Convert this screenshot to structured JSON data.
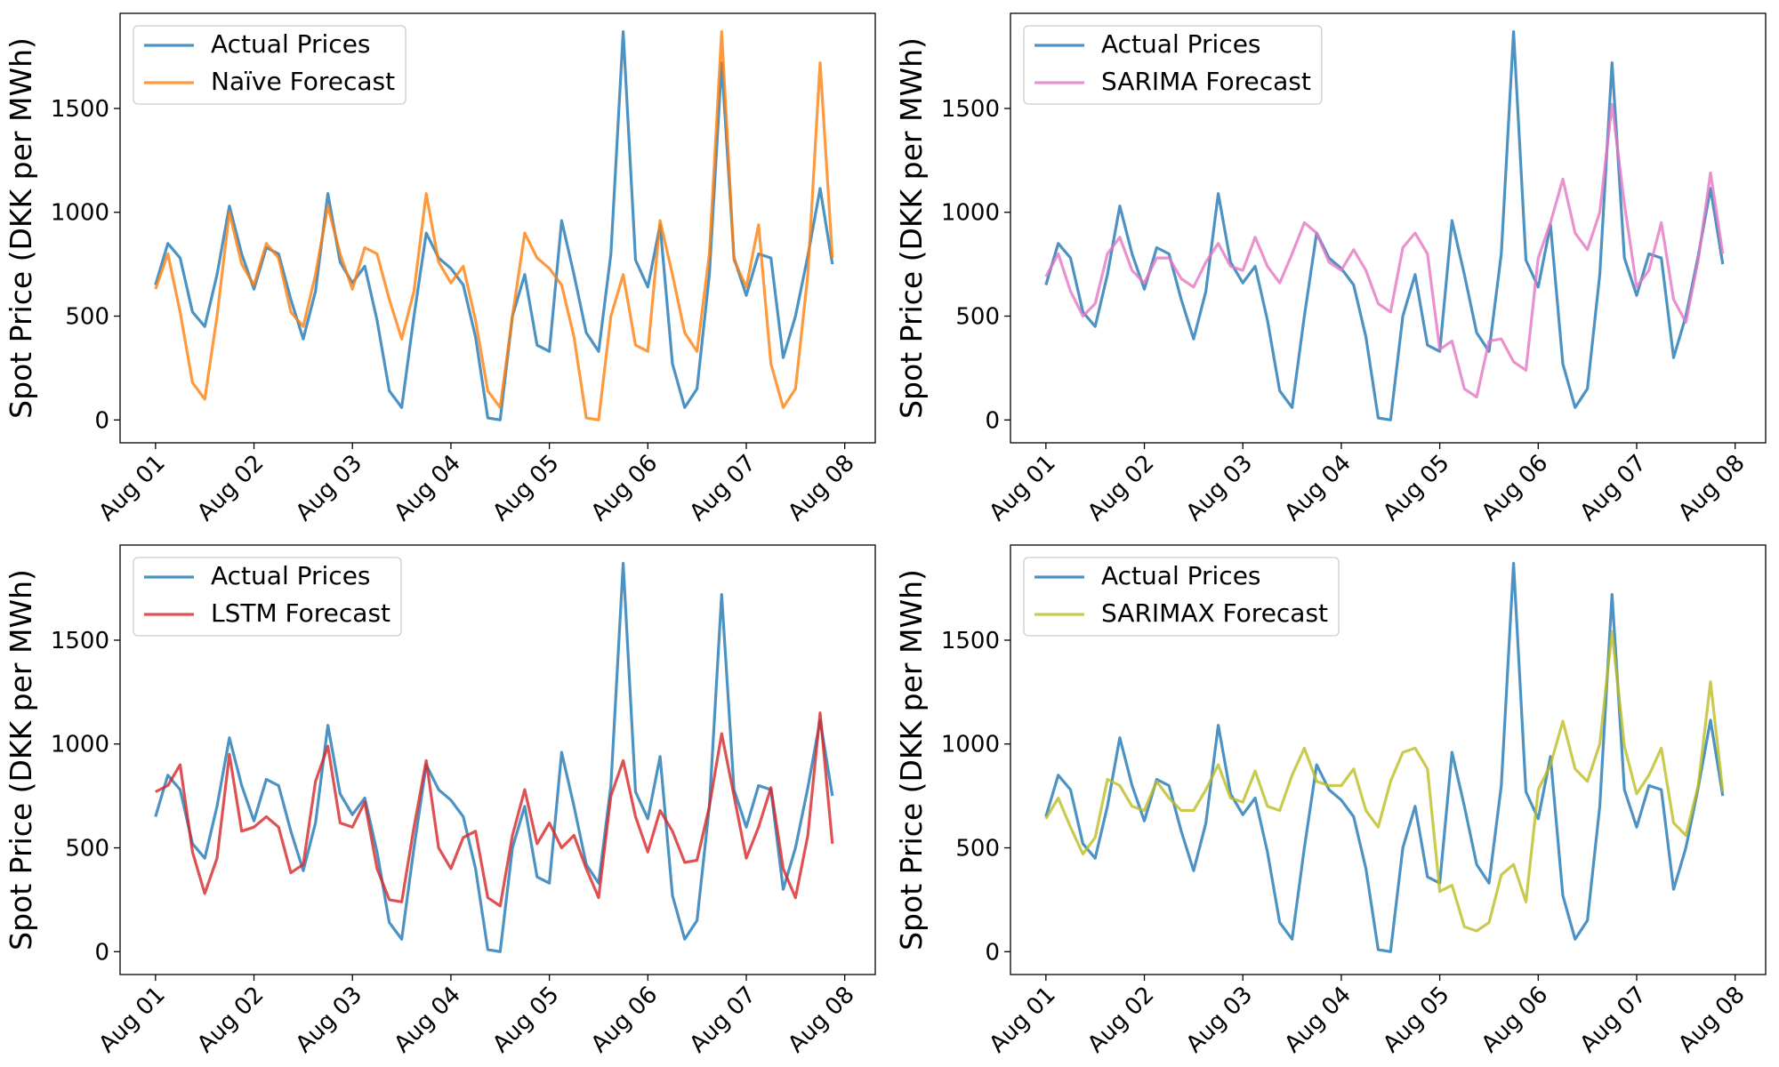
{
  "chart_data": [
    {
      "type": "line",
      "ylabel": "Spot Price (DKK per MWh)",
      "legend": "upper left",
      "x": [
        0,
        0.125,
        0.25,
        0.375,
        0.5,
        0.625,
        0.75,
        0.875,
        1,
        1.125,
        1.25,
        1.375,
        1.5,
        1.625,
        1.75,
        1.875,
        2,
        2.125,
        2.25,
        2.375,
        2.5,
        2.625,
        2.75,
        2.875,
        3,
        3.125,
        3.25,
        3.375,
        3.5,
        3.625,
        3.75,
        3.875,
        4,
        4.125,
        4.25,
        4.375,
        4.5,
        4.625,
        4.75,
        4.875,
        5,
        5.125,
        5.25,
        5.375,
        5.5,
        5.625,
        5.75,
        5.875,
        6,
        6.125,
        6.25,
        6.375,
        6.5,
        6.625,
        6.75,
        6.875
      ],
      "xlim": [
        -0.36,
        7.31
      ],
      "xticks": [
        {
          "value": 0,
          "label": "Aug 01"
        },
        {
          "value": 1,
          "label": "Aug 02"
        },
        {
          "value": 2,
          "label": "Aug 03"
        },
        {
          "value": 3,
          "label": "Aug 04"
        },
        {
          "value": 4,
          "label": "Aug 05"
        },
        {
          "value": 5,
          "label": "Aug 06"
        },
        {
          "value": 6,
          "label": "Aug 07"
        },
        {
          "value": 7,
          "label": "Aug 08"
        }
      ],
      "ylim": [
        -110,
        1958
      ],
      "yticks": [
        0,
        500,
        1000,
        1500
      ],
      "series": [
        {
          "name": "Actual Prices",
          "color": "#1f77b4",
          "values": [
            650,
            850,
            780,
            520,
            450,
            700,
            1030,
            800,
            630,
            830,
            800,
            580,
            390,
            620,
            1090,
            760,
            660,
            740,
            480,
            140,
            60,
            500,
            900,
            780,
            730,
            650,
            400,
            10,
            0,
            500,
            700,
            360,
            330,
            960,
            700,
            420,
            330,
            800,
            1870,
            770,
            640,
            940,
            270,
            60,
            150,
            700,
            1720,
            780,
            600,
            800,
            780,
            300,
            500,
            790,
            1115,
            750
          ]
        },
        {
          "name": "Naïve Forecast",
          "color": "#ff7f0e",
          "values": [
            630,
            800,
            520,
            180,
            100,
            500,
            1000,
            750,
            650,
            850,
            780,
            520,
            450,
            700,
            1030,
            800,
            630,
            830,
            800,
            580,
            390,
            620,
            1090,
            760,
            660,
            740,
            480,
            140,
            60,
            500,
            900,
            780,
            730,
            650,
            400,
            10,
            0,
            500,
            700,
            360,
            330,
            960,
            700,
            420,
            330,
            800,
            1870,
            770,
            640,
            940,
            270,
            60,
            150,
            700,
            1720,
            780
          ]
        }
      ]
    },
    {
      "type": "line",
      "ylabel": "Spot Price (DKK per MWh)",
      "legend": "upper left",
      "x": [
        0,
        0.125,
        0.25,
        0.375,
        0.5,
        0.625,
        0.75,
        0.875,
        1,
        1.125,
        1.25,
        1.375,
        1.5,
        1.625,
        1.75,
        1.875,
        2,
        2.125,
        2.25,
        2.375,
        2.5,
        2.625,
        2.75,
        2.875,
        3,
        3.125,
        3.25,
        3.375,
        3.5,
        3.625,
        3.75,
        3.875,
        4,
        4.125,
        4.25,
        4.375,
        4.5,
        4.625,
        4.75,
        4.875,
        5,
        5.125,
        5.25,
        5.375,
        5.5,
        5.625,
        5.75,
        5.875,
        6,
        6.125,
        6.25,
        6.375,
        6.5,
        6.625,
        6.75,
        6.875
      ],
      "xlim": [
        -0.36,
        7.31
      ],
      "xticks": [
        {
          "value": 0,
          "label": "Aug 01"
        },
        {
          "value": 1,
          "label": "Aug 02"
        },
        {
          "value": 2,
          "label": "Aug 03"
        },
        {
          "value": 3,
          "label": "Aug 04"
        },
        {
          "value": 4,
          "label": "Aug 05"
        },
        {
          "value": 5,
          "label": "Aug 06"
        },
        {
          "value": 6,
          "label": "Aug 07"
        },
        {
          "value": 7,
          "label": "Aug 08"
        }
      ],
      "ylim": [
        -110,
        1958
      ],
      "yticks": [
        0,
        500,
        1000,
        1500
      ],
      "series": [
        {
          "name": "Actual Prices",
          "color": "#1f77b4",
          "values": [
            650,
            850,
            780,
            520,
            450,
            700,
            1030,
            800,
            630,
            830,
            800,
            580,
            390,
            620,
            1090,
            760,
            660,
            740,
            480,
            140,
            60,
            500,
            900,
            780,
            730,
            650,
            400,
            10,
            0,
            500,
            700,
            360,
            330,
            960,
            700,
            420,
            330,
            800,
            1870,
            770,
            640,
            940,
            270,
            60,
            150,
            700,
            1720,
            780,
            600,
            800,
            780,
            300,
            500,
            790,
            1115,
            750
          ]
        },
        {
          "name": "SARIMA Forecast",
          "color": "#e377c2",
          "values": [
            690,
            800,
            620,
            500,
            560,
            800,
            880,
            720,
            660,
            780,
            780,
            680,
            640,
            760,
            850,
            740,
            720,
            880,
            740,
            660,
            800,
            950,
            900,
            760,
            720,
            820,
            720,
            560,
            520,
            830,
            900,
            800,
            340,
            380,
            150,
            110,
            380,
            390,
            280,
            240,
            780,
            950,
            1160,
            900,
            820,
            1000,
            1520,
            1040,
            640,
            720,
            950,
            580,
            470,
            770,
            1190,
            800
          ]
        }
      ]
    },
    {
      "type": "line",
      "ylabel": "Spot Price (DKK per MWh)",
      "legend": "upper left",
      "x": [
        0,
        0.125,
        0.25,
        0.375,
        0.5,
        0.625,
        0.75,
        0.875,
        1,
        1.125,
        1.25,
        1.375,
        1.5,
        1.625,
        1.75,
        1.875,
        2,
        2.125,
        2.25,
        2.375,
        2.5,
        2.625,
        2.75,
        2.875,
        3,
        3.125,
        3.25,
        3.375,
        3.5,
        3.625,
        3.75,
        3.875,
        4,
        4.125,
        4.25,
        4.375,
        4.5,
        4.625,
        4.75,
        4.875,
        5,
        5.125,
        5.25,
        5.375,
        5.5,
        5.625,
        5.75,
        5.875,
        6,
        6.125,
        6.25,
        6.375,
        6.5,
        6.625,
        6.75,
        6.875
      ],
      "xlim": [
        -0.36,
        7.31
      ],
      "xticks": [
        {
          "value": 0,
          "label": "Aug 01"
        },
        {
          "value": 1,
          "label": "Aug 02"
        },
        {
          "value": 2,
          "label": "Aug 03"
        },
        {
          "value": 3,
          "label": "Aug 04"
        },
        {
          "value": 4,
          "label": "Aug 05"
        },
        {
          "value": 5,
          "label": "Aug 06"
        },
        {
          "value": 6,
          "label": "Aug 07"
        },
        {
          "value": 7,
          "label": "Aug 08"
        }
      ],
      "ylim": [
        -110,
        1958
      ],
      "yticks": [
        0,
        500,
        1000,
        1500
      ],
      "series": [
        {
          "name": "Actual Prices",
          "color": "#1f77b4",
          "values": [
            650,
            850,
            780,
            520,
            450,
            700,
            1030,
            800,
            630,
            830,
            800,
            580,
            390,
            620,
            1090,
            760,
            660,
            740,
            480,
            140,
            60,
            500,
            900,
            780,
            730,
            650,
            400,
            10,
            0,
            500,
            700,
            360,
            330,
            960,
            700,
            420,
            330,
            800,
            1870,
            770,
            640,
            940,
            270,
            60,
            150,
            700,
            1720,
            780,
            600,
            800,
            780,
            300,
            500,
            790,
            1115,
            750
          ]
        },
        {
          "name": "LSTM Forecast",
          "color": "#d62728",
          "values": [
            770,
            800,
            900,
            480,
            280,
            450,
            950,
            580,
            600,
            650,
            600,
            380,
            420,
            820,
            990,
            620,
            600,
            720,
            400,
            250,
            240,
            600,
            920,
            500,
            400,
            550,
            580,
            260,
            220,
            560,
            780,
            520,
            620,
            500,
            560,
            400,
            260,
            750,
            920,
            650,
            480,
            680,
            580,
            430,
            440,
            700,
            1050,
            750,
            450,
            600,
            790,
            400,
            260,
            560,
            1150,
            520
          ]
        }
      ]
    },
    {
      "type": "line",
      "ylabel": "Spot Price (DKK per MWh)",
      "legend": "upper left",
      "x": [
        0,
        0.125,
        0.25,
        0.375,
        0.5,
        0.625,
        0.75,
        0.875,
        1,
        1.125,
        1.25,
        1.375,
        1.5,
        1.625,
        1.75,
        1.875,
        2,
        2.125,
        2.25,
        2.375,
        2.5,
        2.625,
        2.75,
        2.875,
        3,
        3.125,
        3.25,
        3.375,
        3.5,
        3.625,
        3.75,
        3.875,
        4,
        4.125,
        4.25,
        4.375,
        4.5,
        4.625,
        4.75,
        4.875,
        5,
        5.125,
        5.25,
        5.375,
        5.5,
        5.625,
        5.75,
        5.875,
        6,
        6.125,
        6.25,
        6.375,
        6.5,
        6.625,
        6.75,
        6.875
      ],
      "xlim": [
        -0.36,
        7.31
      ],
      "xticks": [
        {
          "value": 0,
          "label": "Aug 01"
        },
        {
          "value": 1,
          "label": "Aug 02"
        },
        {
          "value": 2,
          "label": "Aug 03"
        },
        {
          "value": 3,
          "label": "Aug 04"
        },
        {
          "value": 4,
          "label": "Aug 05"
        },
        {
          "value": 5,
          "label": "Aug 06"
        },
        {
          "value": 6,
          "label": "Aug 07"
        },
        {
          "value": 7,
          "label": "Aug 08"
        }
      ],
      "ylim": [
        -110,
        1958
      ],
      "yticks": [
        0,
        500,
        1000,
        1500
      ],
      "series": [
        {
          "name": "Actual Prices",
          "color": "#1f77b4",
          "values": [
            650,
            850,
            780,
            520,
            450,
            700,
            1030,
            800,
            630,
            830,
            800,
            580,
            390,
            620,
            1090,
            760,
            660,
            740,
            480,
            140,
            60,
            500,
            900,
            780,
            730,
            650,
            400,
            10,
            0,
            500,
            700,
            360,
            330,
            960,
            700,
            420,
            330,
            800,
            1870,
            770,
            640,
            940,
            270,
            60,
            150,
            700,
            1720,
            780,
            600,
            800,
            780,
            300,
            500,
            790,
            1115,
            750
          ]
        },
        {
          "name": "SARIMAX Forecast",
          "color": "#bcbd22",
          "values": [
            640,
            740,
            600,
            470,
            550,
            830,
            800,
            700,
            680,
            820,
            740,
            680,
            680,
            780,
            900,
            740,
            720,
            870,
            700,
            680,
            850,
            980,
            820,
            800,
            800,
            880,
            680,
            600,
            820,
            960,
            980,
            880,
            290,
            320,
            120,
            100,
            140,
            370,
            420,
            240,
            780,
            900,
            1110,
            880,
            820,
            1000,
            1540,
            990,
            760,
            850,
            980,
            620,
            560,
            800,
            1300,
            770
          ]
        }
      ]
    }
  ]
}
